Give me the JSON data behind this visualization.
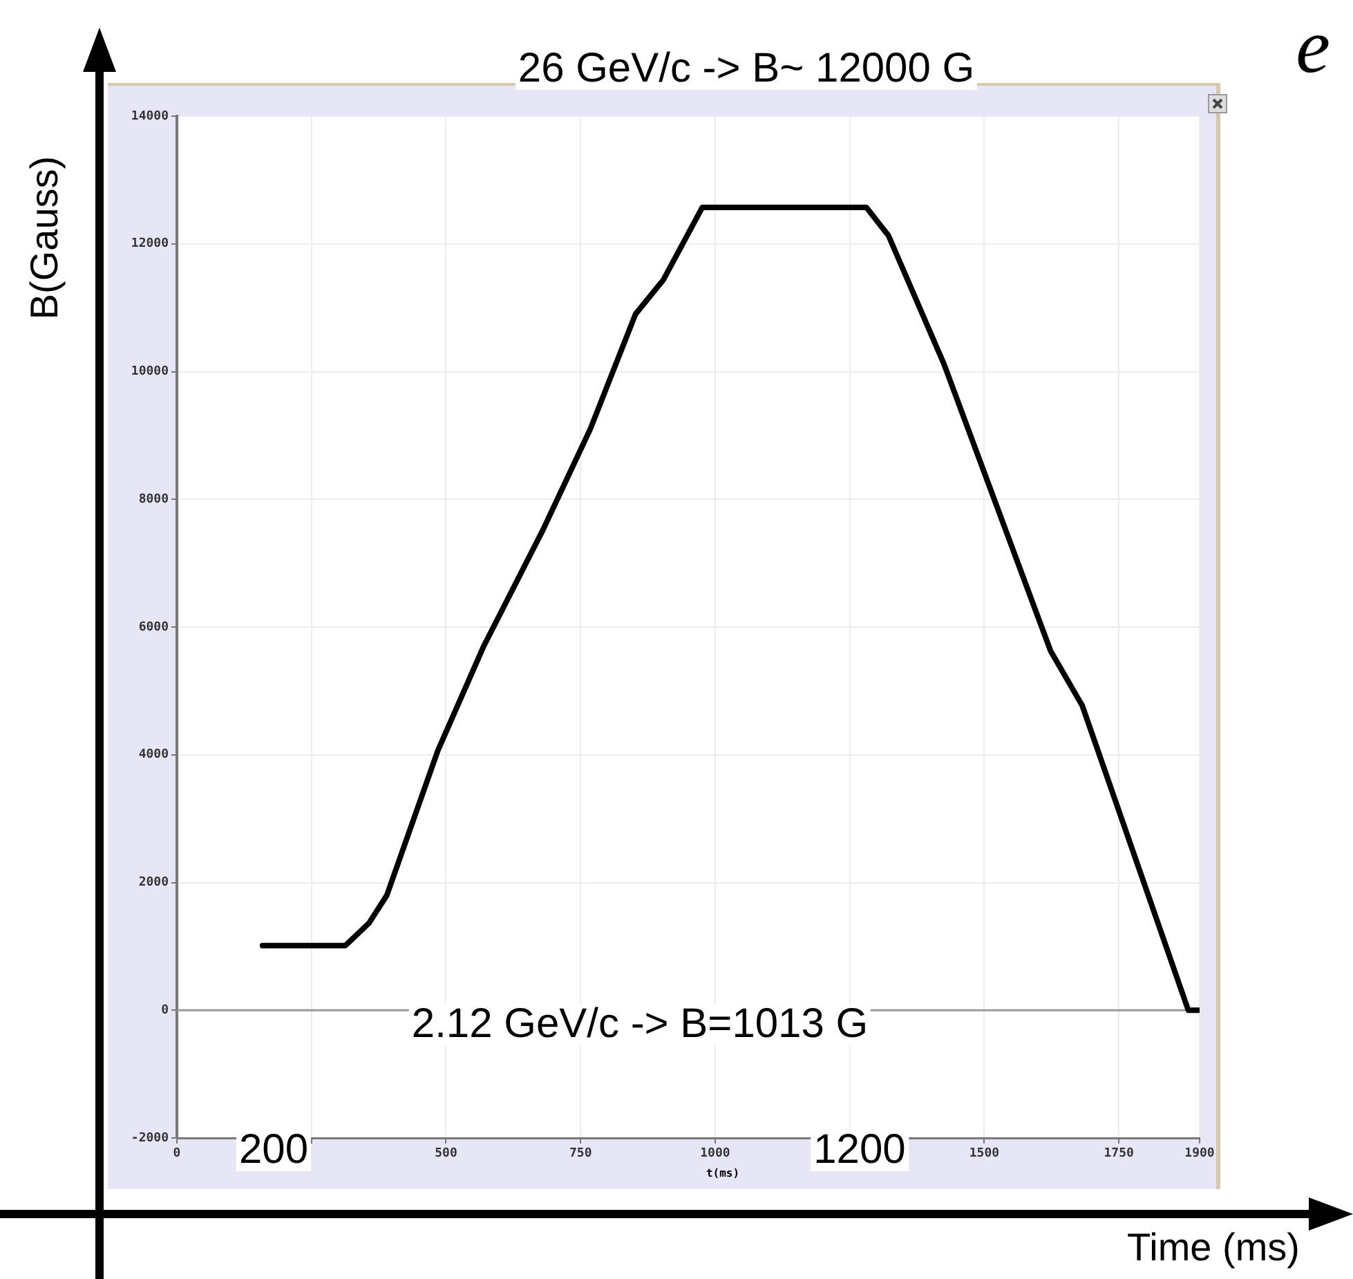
{
  "chart_data": {
    "type": "line",
    "xlabel": "Time (ms)",
    "ylabel": "B(Gauss)",
    "annotations": [
      "26 GeV/c -> B~ 12000 G",
      "2.12 GeV/c -> B=1013 G",
      "200",
      "1200",
      "t(ms)",
      "e"
    ],
    "x": [
      159,
      313,
      357,
      390,
      485,
      570,
      680,
      768,
      852,
      904,
      976,
      1281,
      1322,
      1425,
      1623,
      1682,
      1879,
      1900
    ],
    "series": [
      {
        "color": "#000000",
        "values": [
          1013,
          1013,
          1365,
          1800,
          4070,
          5700,
          7520,
          9100,
          10900,
          11440,
          12570,
          12570,
          12130,
          10120,
          5630,
          4770,
          0,
          0
        ]
      }
    ],
    "xlim": [
      0,
      1900
    ],
    "xticks": [
      0,
      {
        "value": 250,
        "label": null
      },
      500,
      750,
      1000,
      {
        "value": 1250,
        "label": null
      },
      1500,
      1750,
      1900
    ],
    "ylim": [
      -2000,
      14000
    ],
    "yticks": [
      -2000,
      0,
      2000,
      4000,
      6000,
      8000,
      10000,
      12000,
      14000
    ],
    "grid": true,
    "legend": false,
    "marker": "none",
    "line_style": "solid",
    "ref_lines": [
      {
        "axis": "y",
        "value": 0,
        "color": "#999999"
      }
    ]
  }
}
